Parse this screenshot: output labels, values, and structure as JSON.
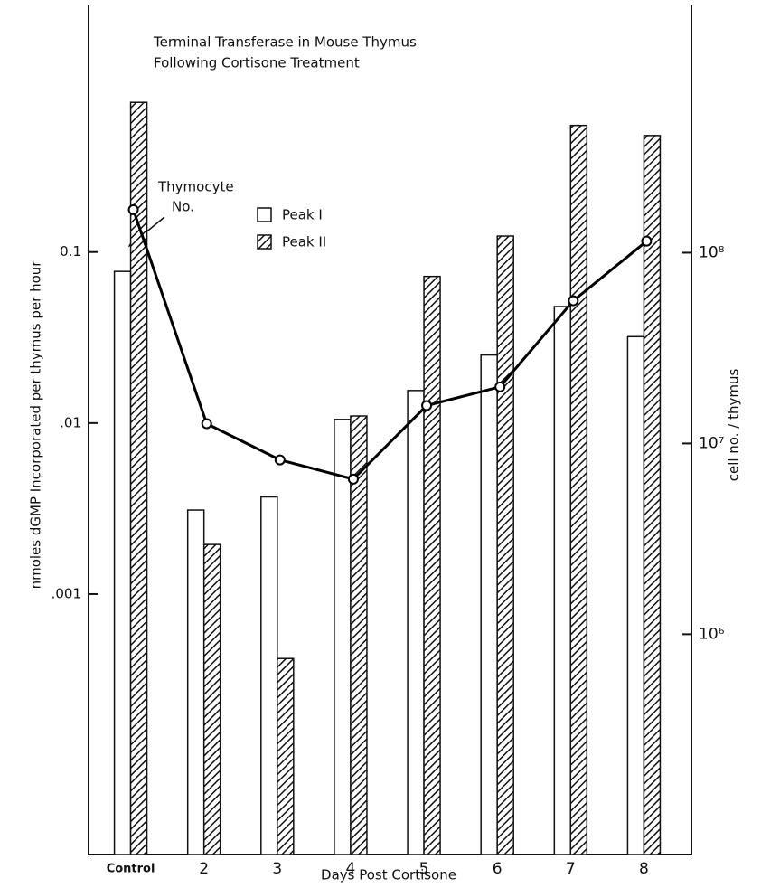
{
  "chart_data": {
    "type": "bar",
    "title": [
      "Terminal Transferase in Mouse Thymus",
      "Following Cortisone Treatment"
    ],
    "x_label": "Days Post Cortisone",
    "y_label": "nmoles dGMP Incorporated per thymus per hour",
    "y2_label": "cell no. / thymus",
    "categories": [
      "Control",
      "2",
      "3",
      "4",
      "5",
      "6",
      "7",
      "8"
    ],
    "log_scale": true,
    "ylim": [
      3e-05,
      2.8
    ],
    "yticks": [
      0.1,
      {
        "value": 0.01,
        "label": ".01"
      },
      {
        "value": 0.001,
        "label": ".001"
      }
    ],
    "y2lim": [
      70000,
      2000000000
    ],
    "y2ticks": [
      {
        "value": 100000000,
        "label": "10⁸"
      },
      {
        "value": 10000000,
        "label": "10⁷"
      },
      {
        "value": 1000000,
        "label": "10⁶"
      }
    ],
    "series": [
      {
        "name": "Peak I",
        "color": "#ffffff",
        "fill": "plain",
        "values": [
          0.077,
          0.0031,
          0.0037,
          0.0105,
          0.0155,
          0.025,
          0.048,
          0.032
        ]
      },
      {
        "name": "Peak II",
        "color": "#000000",
        "fill": "hatch",
        "values": [
          0.75,
          0.00195,
          0.00042,
          0.011,
          0.072,
          0.124,
          0.55,
          0.48
        ]
      },
      {
        "name": "Thymocyte No.",
        "type": "line",
        "axis": "y2",
        "color": "#000000",
        "values": [
          168000000,
          12700000,
          8200000,
          6500000,
          15800000,
          19800000,
          56000000,
          115000000
        ]
      }
    ],
    "annotation": [
      "Thymocyte",
      "No."
    ]
  }
}
